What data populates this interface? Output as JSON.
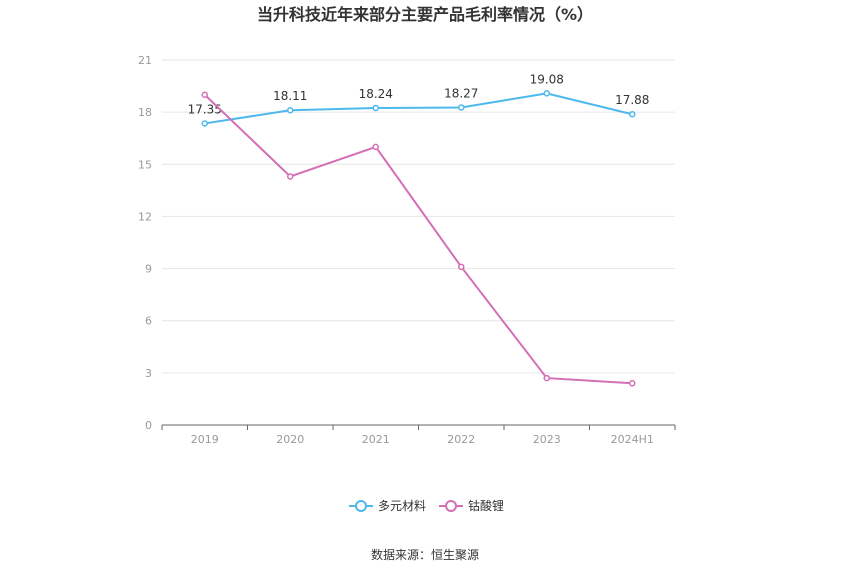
{
  "chart_data": {
    "type": "line",
    "title": "当升科技近年来部分主要产品毛利率情况（%）",
    "categories": [
      "2019",
      "2020",
      "2021",
      "2022",
      "2023",
      "2024H1"
    ],
    "ylim": [
      0,
      21
    ],
    "yticks": [
      0,
      3,
      6,
      9,
      12,
      15,
      18,
      21
    ],
    "grid": true,
    "legend_position": "bottom-center",
    "series": [
      {
        "name": "多元材料",
        "color": "#4db8ec",
        "values": [
          17.35,
          18.11,
          18.24,
          18.27,
          19.08,
          17.88
        ],
        "labels": [
          "17.35",
          "18.11",
          "18.24",
          "18.27",
          "19.08",
          "17.88"
        ]
      },
      {
        "name": "钴酸锂",
        "color": "#d46fb6",
        "values": [
          19.0,
          14.3,
          16.0,
          9.1,
          2.7,
          2.4
        ]
      }
    ],
    "source": "数据来源：恒生聚源"
  }
}
